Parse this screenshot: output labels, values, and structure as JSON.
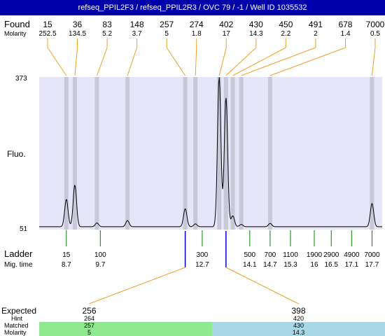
{
  "header": {
    "title": "refseq_PPIL2F3 / refseq_PPIL2R3 / OVC 79 / -1 / Well ID 1035532",
    "background": "#0000aa",
    "color": "#ffffff"
  },
  "labels": {
    "found": "Found",
    "molarity": "Molarity",
    "fluo": "Fluo.",
    "ladder": "Ladder",
    "mig_time": "Mig. time",
    "expected": "Expected",
    "hint": "Hint",
    "matched": "Matched",
    "molarity_bottom": "Molarity"
  },
  "colors": {
    "plot_band": "#e6e6f8",
    "lane": "#c8c8d8",
    "trace": "#000000",
    "connector": "#f0a020",
    "ladder_tick": "#008000",
    "expected_marker": "#0000cc",
    "matched_left": "#90e890",
    "matched_right": "#a8d8e8"
  },
  "chart_data": {
    "type": "line",
    "title": "",
    "y_ticks": [
      "373",
      "51"
    ],
    "ylim": [
      51,
      373
    ],
    "xlim": [
      7.9,
      18.0
    ],
    "x_unit": "migration time",
    "ladder": [
      {
        "size": "15",
        "time": "8.7",
        "t": 8.7
      },
      {
        "size": "100",
        "time": "9.7",
        "t": 9.7
      },
      {
        "size": "300",
        "time": "12.7",
        "t": 12.7
      },
      {
        "size": "500",
        "time": "14.1",
        "t": 14.1
      },
      {
        "size": "700",
        "time": "14.7",
        "t": 14.7
      },
      {
        "size": "1100",
        "time": "15.3",
        "t": 15.3
      },
      {
        "size": "1900",
        "time": "16",
        "t": 16.0
      },
      {
        "size": "2900",
        "time": "16.5",
        "t": 16.5
      },
      {
        "size": "4900",
        "time": "17.1",
        "t": 17.1
      },
      {
        "size": "7000",
        "time": "17.7",
        "t": 17.7
      }
    ],
    "found_peaks": [
      {
        "size": "15",
        "molarity": "252.5",
        "t": 8.7,
        "height": 115
      },
      {
        "size": "36",
        "molarity": "134.5",
        "t": 8.95,
        "height": 145
      },
      {
        "size": "83",
        "molarity": "5.2",
        "t": 9.6,
        "height": 65
      },
      {
        "size": "148",
        "molarity": "3.7",
        "t": 10.5,
        "height": 70
      },
      {
        "size": "257",
        "molarity": "5",
        "t": 12.2,
        "height": 95
      },
      {
        "size": "274",
        "molarity": "1.8",
        "t": 12.5,
        "height": 63
      },
      {
        "size": "402",
        "molarity": "17",
        "t": 13.2,
        "height": 373
      },
      {
        "size": "430",
        "molarity": "14.3",
        "t": 13.4,
        "height": 330
      },
      {
        "size": "450",
        "molarity": "2.2",
        "t": 13.6,
        "height": 80
      },
      {
        "size": "491",
        "molarity": "2",
        "t": 13.85,
        "height": 62
      },
      {
        "size": "678",
        "molarity": "1.4",
        "t": 14.7,
        "height": 64
      },
      {
        "size": "7000",
        "molarity": "0.5",
        "t": 17.7,
        "height": 106
      }
    ],
    "expected": [
      {
        "expected": "256",
        "hint": "264",
        "matched": "257",
        "molarity": "5",
        "t": 12.2
      },
      {
        "expected": "398",
        "hint": "420",
        "matched": "430",
        "molarity": "14.3",
        "t": 13.4
      }
    ]
  }
}
